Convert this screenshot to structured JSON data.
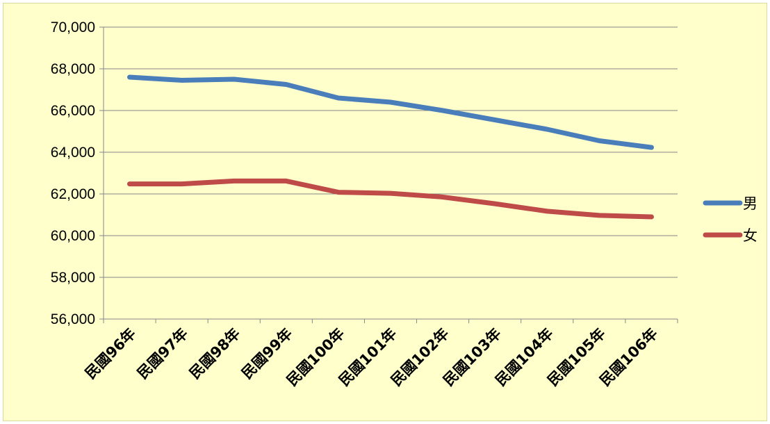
{
  "chart_data": {
    "type": "line",
    "title": "",
    "xlabel": "",
    "ylabel": "",
    "categories": [
      "民國96年",
      "民國97年",
      "民國98年",
      "民國99年",
      "民國100年",
      "民國101年",
      "民國102年",
      "民國103年",
      "民國104年",
      "民國105年",
      "民國106年"
    ],
    "ylim": [
      56000,
      70000
    ],
    "yticks": [
      56000,
      58000,
      60000,
      62000,
      64000,
      66000,
      68000,
      70000
    ],
    "ytick_labels": [
      "56,000",
      "58,000",
      "60,000",
      "62,000",
      "64,000",
      "66,000",
      "68,000",
      "70,000"
    ],
    "grid": true,
    "legend_position": "right",
    "series": [
      {
        "name": "男",
        "color": "#4a7ebb",
        "values": [
          67600,
          67450,
          67500,
          67250,
          66600,
          66400,
          66000,
          65550,
          65100,
          64550,
          64230
        ]
      },
      {
        "name": "女",
        "color": "#be4b48",
        "values": [
          62480,
          62480,
          62620,
          62620,
          62080,
          62030,
          61850,
          61530,
          61170,
          60970,
          60900
        ]
      }
    ]
  }
}
